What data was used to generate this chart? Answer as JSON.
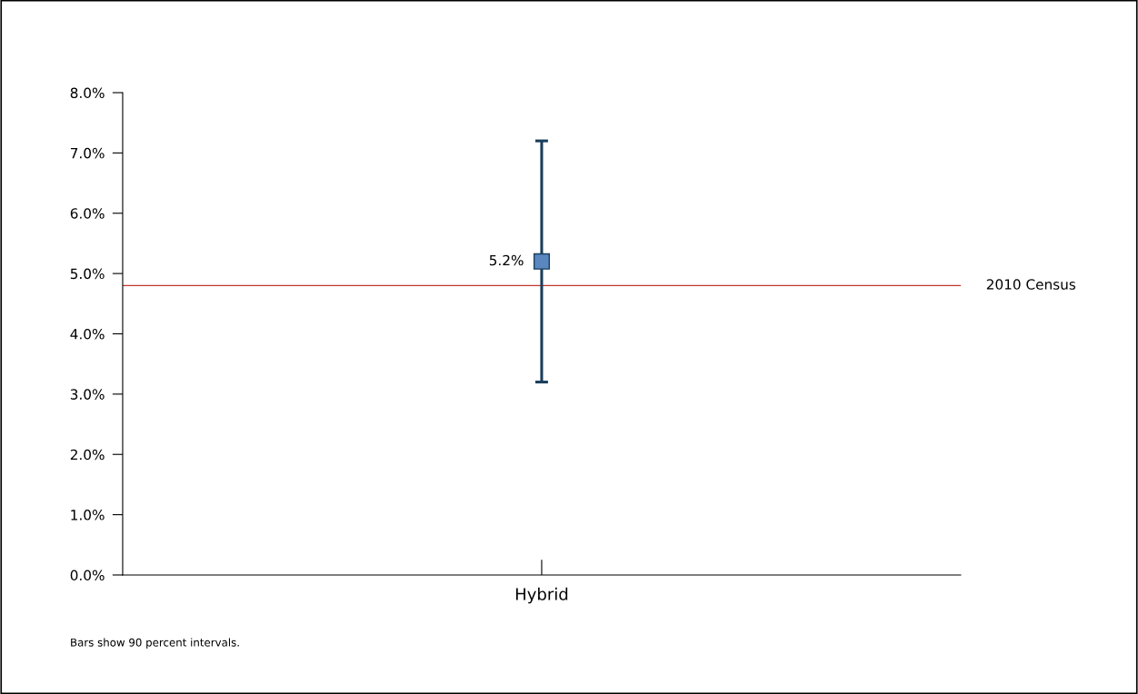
{
  "chart_data": {
    "type": "scatter",
    "categories": [
      "Hybrid"
    ],
    "series": [
      {
        "color": "#5b87c0",
        "values": [
          5.2
        ],
        "errors": [
          [
            3.2,
            7.2
          ]
        ],
        "value_labels": [
          "5.2%"
        ]
      }
    ],
    "marker": "square",
    "ylim": [
      0,
      8
    ],
    "yticks": [
      {
        "value": 0,
        "label": "0.0%"
      },
      {
        "value": 1,
        "label": "1.0%"
      },
      {
        "value": 2,
        "label": "2.0%"
      },
      {
        "value": 3,
        "label": "3.0%"
      },
      {
        "value": 4,
        "label": "4.0%"
      },
      {
        "value": 5,
        "label": "5.0%"
      },
      {
        "value": 6,
        "label": "6.0%"
      },
      {
        "value": 7,
        "label": "7.0%"
      },
      {
        "value": 8,
        "label": "8.0%"
      }
    ],
    "ref_lines": [
      {
        "axis": "y",
        "value": 4.8,
        "label": "2010 Census",
        "color": "#c0392b"
      }
    ],
    "annotations": [
      "Bars show 90 percent intervals."
    ],
    "grid": false,
    "legend": false
  }
}
